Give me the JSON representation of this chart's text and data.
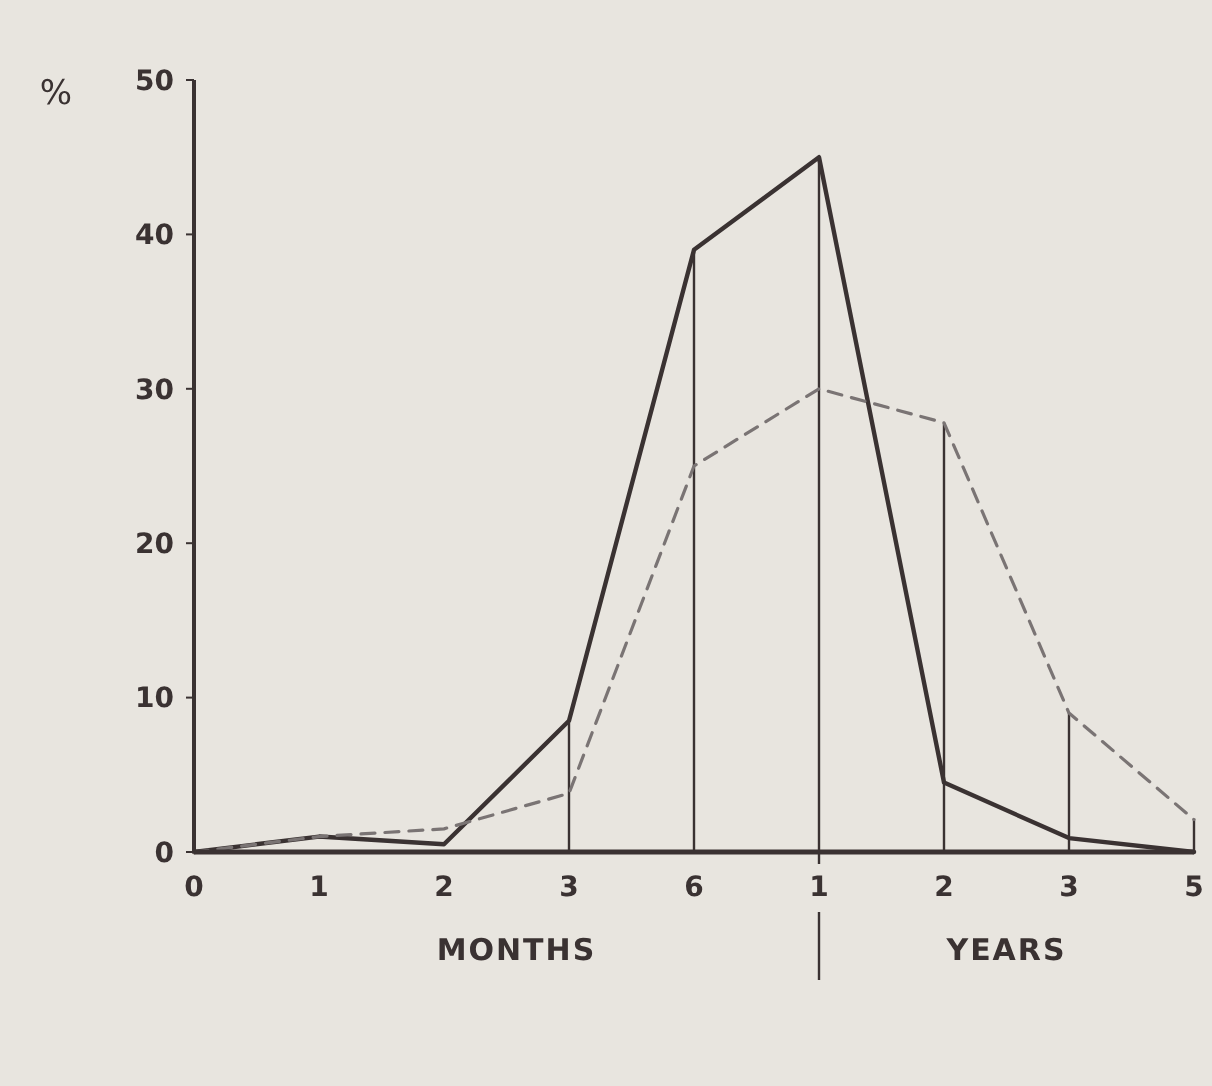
{
  "chart_data": {
    "type": "line",
    "ylabel": "%",
    "categories": [
      "0",
      "1",
      "2",
      "3",
      "6",
      "1",
      "2",
      "3",
      "5"
    ],
    "series": [
      {
        "color": "#3a3232",
        "line_style": "solid",
        "values": [
          0,
          1,
          0.5,
          8.5,
          39,
          45,
          4.5,
          0.9,
          0
        ]
      },
      {
        "color": "#7a7474",
        "line_style": "dashed",
        "values": [
          0,
          1,
          1.5,
          3.8,
          25,
          30,
          27.8,
          9,
          2.1
        ]
      }
    ],
    "ylim": [
      0,
      50
    ],
    "yticks": [
      0,
      10,
      20,
      30,
      40,
      50
    ],
    "marker": "none",
    "annotations": [
      "MONTHS",
      "YEARS"
    ]
  }
}
